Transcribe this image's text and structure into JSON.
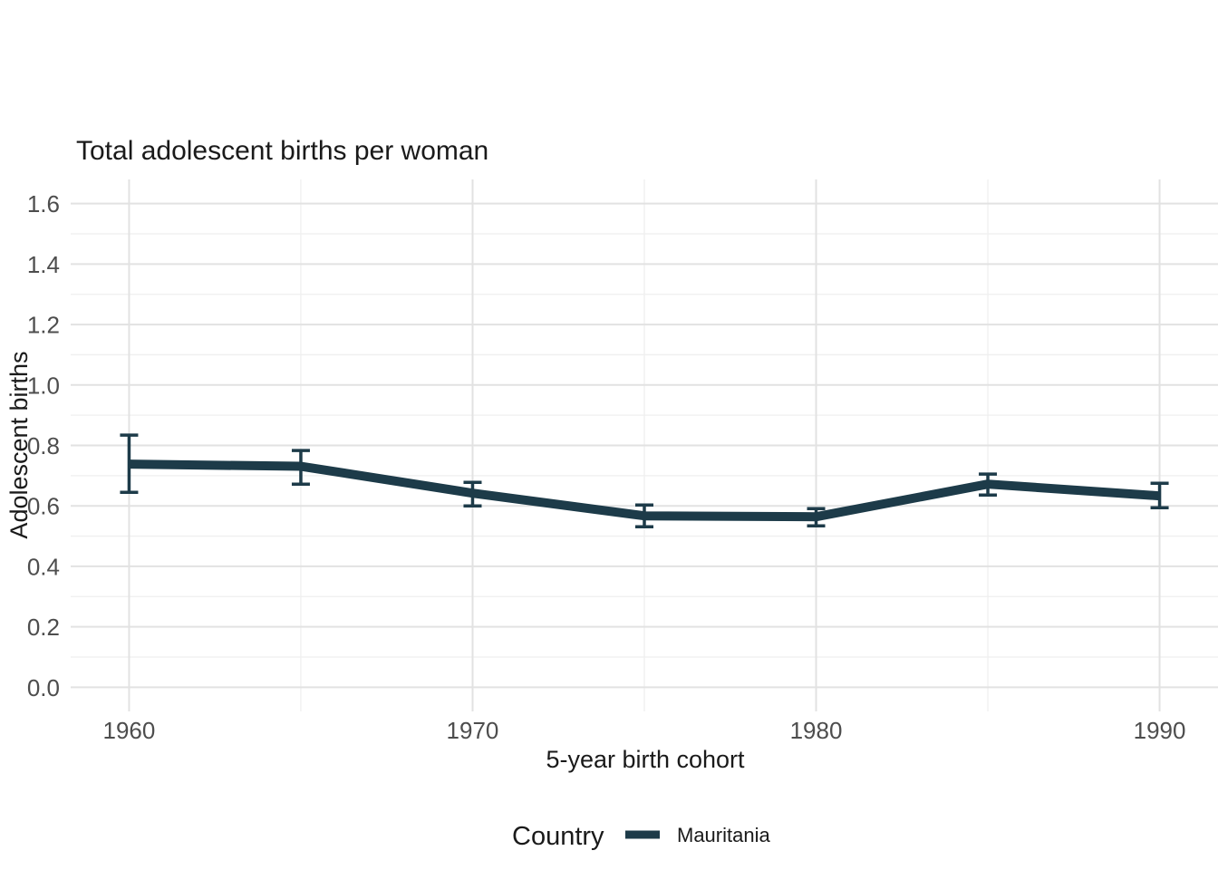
{
  "chart_data": {
    "type": "line",
    "title": "Total adolescent births per woman",
    "xlabel": "5-year birth cohort",
    "ylabel": "Adolescent births",
    "legend": {
      "title": "Country",
      "position": "bottom"
    },
    "x": [
      1960,
      1965,
      1970,
      1975,
      1980,
      1985,
      1990
    ],
    "series": [
      {
        "name": "Mauritania",
        "color": "#1d3b49",
        "values": [
          0.738,
          0.731,
          0.642,
          0.567,
          0.564,
          0.672,
          0.633
        ],
        "ci_low": [
          0.645,
          0.672,
          0.6,
          0.531,
          0.534,
          0.636,
          0.594
        ],
        "ci_high": [
          0.834,
          0.783,
          0.678,
          0.603,
          0.591,
          0.705,
          0.675
        ]
      }
    ],
    "x_ticks": [
      1960,
      1970,
      1980,
      1990
    ],
    "x_tick_labels": [
      "1960",
      "1970",
      "1980",
      "1990"
    ],
    "x_minor_ticks": [
      1965,
      1975,
      1985
    ],
    "y_ticks": [
      0.0,
      0.2,
      0.4,
      0.6,
      0.8,
      1.0,
      1.2,
      1.4,
      1.6
    ],
    "y_tick_labels": [
      "0.0",
      "0.2",
      "0.4",
      "0.6",
      "0.8",
      "1.0",
      "1.2",
      "1.4",
      "1.6"
    ],
    "y_minor_ticks": [
      0.1,
      0.3,
      0.5,
      0.7,
      0.9,
      1.1,
      1.3,
      1.5
    ],
    "xlim": [
      1958.3,
      1991.7
    ],
    "ylim": [
      -0.08,
      1.68
    ],
    "grid": true
  },
  "style": {
    "line_color": "#1d3b49",
    "major_grid_color": "#e2e2e2",
    "minor_grid_color": "#efefef",
    "tick_label_color": "#4d4d4d",
    "text_color": "#1a1a1a",
    "background": "#ffffff"
  }
}
